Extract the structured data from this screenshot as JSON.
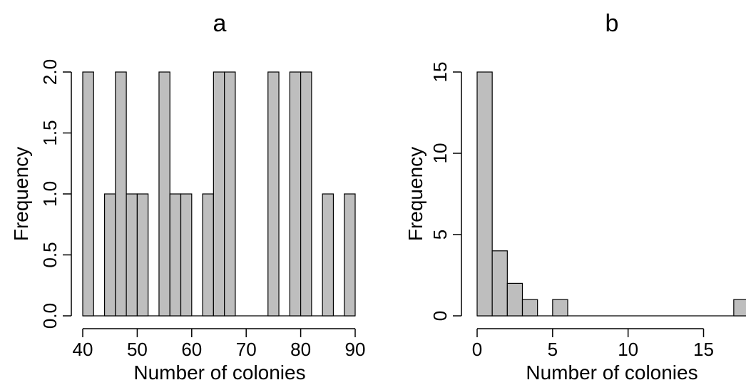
{
  "chart_data": [
    {
      "id": "a",
      "type": "bar",
      "title": "a",
      "xlabel": "Number of colonies",
      "ylabel": "Frequency",
      "xlim": [
        40,
        90
      ],
      "ylim": [
        0,
        2
      ],
      "xticks": [
        40,
        50,
        60,
        70,
        80,
        90
      ],
      "yticks": [
        0,
        0.5,
        1,
        1.5,
        2
      ],
      "ytick_labels": [
        "0.0",
        "0.5",
        "1.0",
        "1.5",
        "2.0"
      ],
      "bin_width": 2,
      "bins": [
        {
          "x0": 40,
          "x1": 42,
          "count": 2
        },
        {
          "x0": 44,
          "x1": 46,
          "count": 1
        },
        {
          "x0": 46,
          "x1": 48,
          "count": 2
        },
        {
          "x0": 48,
          "x1": 50,
          "count": 1
        },
        {
          "x0": 50,
          "x1": 52,
          "count": 1
        },
        {
          "x0": 54,
          "x1": 56,
          "count": 2
        },
        {
          "x0": 56,
          "x1": 58,
          "count": 1
        },
        {
          "x0": 58,
          "x1": 60,
          "count": 1
        },
        {
          "x0": 62,
          "x1": 64,
          "count": 1
        },
        {
          "x0": 64,
          "x1": 66,
          "count": 2
        },
        {
          "x0": 66,
          "x1": 68,
          "count": 2
        },
        {
          "x0": 74,
          "x1": 76,
          "count": 2
        },
        {
          "x0": 78,
          "x1": 80,
          "count": 2
        },
        {
          "x0": 80,
          "x1": 82,
          "count": 2
        },
        {
          "x0": 84,
          "x1": 86,
          "count": 1
        },
        {
          "x0": 88,
          "x1": 90,
          "count": 1
        }
      ],
      "baseline": [
        40,
        90
      ],
      "bar_color": "#bebebe"
    },
    {
      "id": "b",
      "type": "bar",
      "title": "b",
      "xlabel": "Number of colonies",
      "ylabel": "Frequency",
      "xlim": [
        0,
        18
      ],
      "ylim": [
        0,
        15
      ],
      "xticks": [
        0,
        5,
        10,
        15
      ],
      "yticks": [
        0,
        5,
        10,
        15
      ],
      "ytick_labels": [
        "0",
        "5",
        "10",
        "15"
      ],
      "bin_width": 1,
      "bins": [
        {
          "x0": 0,
          "x1": 1,
          "count": 15
        },
        {
          "x0": 1,
          "x1": 2,
          "count": 4
        },
        {
          "x0": 2,
          "x1": 3,
          "count": 2
        },
        {
          "x0": 3,
          "x1": 4,
          "count": 1
        },
        {
          "x0": 5,
          "x1": 6,
          "count": 1
        },
        {
          "x0": 17,
          "x1": 18,
          "count": 1
        }
      ],
      "baseline": [
        0,
        18
      ],
      "bar_color": "#bebebe"
    }
  ]
}
